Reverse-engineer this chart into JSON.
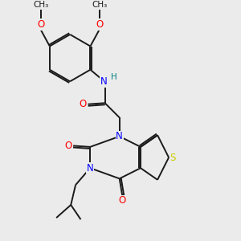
{
  "bg_color": "#ebebeb",
  "atom_colors": {
    "N": "#0000ff",
    "O": "#ff0000",
    "S": "#cccc00",
    "H": "#008080"
  },
  "bond_color": "#1a1a1a",
  "bond_width": 1.4,
  "figsize": [
    3.0,
    3.0
  ],
  "dpi": 100
}
